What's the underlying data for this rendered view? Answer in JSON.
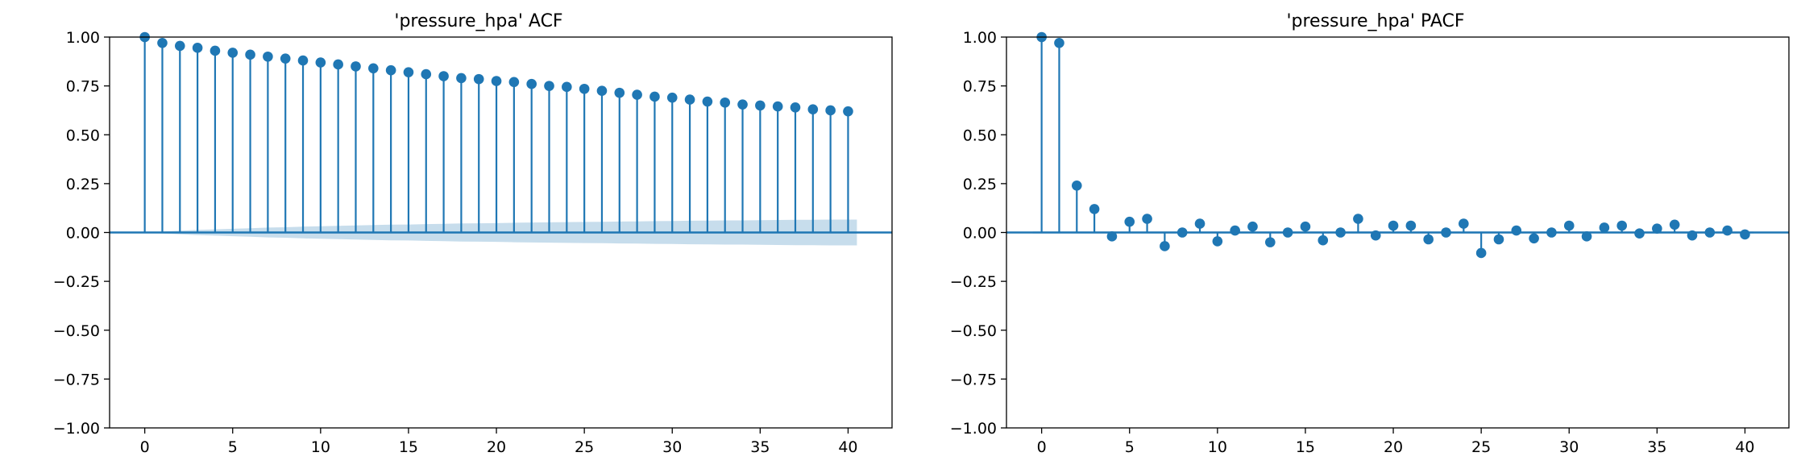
{
  "colors": {
    "stem": "#1f77b4",
    "band": "#1f77b4",
    "axis": "#000000",
    "background": "#ffffff"
  },
  "chart_data": [
    {
      "type": "stem",
      "title": "'pressure_hpa' ACF",
      "xlabel": "",
      "ylabel": "",
      "xlim": [
        -2,
        42.5
      ],
      "ylim": [
        -1.0,
        1.0
      ],
      "xticks": [
        0,
        5,
        10,
        15,
        20,
        25,
        30,
        35,
        40
      ],
      "xtick_labels": [
        "0",
        "5",
        "10",
        "15",
        "20",
        "25",
        "30",
        "35",
        "40"
      ],
      "yticks": [
        -1.0,
        -0.75,
        -0.5,
        -0.25,
        0.0,
        0.25,
        0.5,
        0.75,
        1.0
      ],
      "ytick_labels": [
        "−1.00",
        "−0.75",
        "−0.50",
        "−0.25",
        "0.00",
        "0.25",
        "0.50",
        "0.75",
        "1.00"
      ],
      "x": [
        0,
        1,
        2,
        3,
        4,
        5,
        6,
        7,
        8,
        9,
        10,
        11,
        12,
        13,
        14,
        15,
        16,
        17,
        18,
        19,
        20,
        21,
        22,
        23,
        24,
        25,
        26,
        27,
        28,
        29,
        30,
        31,
        32,
        33,
        34,
        35,
        36,
        37,
        38,
        39,
        40
      ],
      "values": [
        1.0,
        0.97,
        0.955,
        0.945,
        0.93,
        0.92,
        0.91,
        0.9,
        0.89,
        0.88,
        0.87,
        0.86,
        0.85,
        0.84,
        0.83,
        0.82,
        0.81,
        0.8,
        0.79,
        0.785,
        0.775,
        0.77,
        0.76,
        0.75,
        0.745,
        0.735,
        0.725,
        0.715,
        0.705,
        0.695,
        0.69,
        0.68,
        0.67,
        0.665,
        0.655,
        0.65,
        0.645,
        0.64,
        0.63,
        0.625,
        0.62
      ],
      "confidence_band": {
        "x": [
          0,
          1,
          2,
          3,
          4,
          5,
          6,
          7,
          8,
          9,
          10,
          11,
          12,
          13,
          14,
          15,
          16,
          17,
          18,
          19,
          20,
          21,
          22,
          23,
          24,
          25,
          26,
          27,
          28,
          29,
          30,
          31,
          32,
          33,
          34,
          35,
          36,
          37,
          38,
          39,
          40
        ],
        "half_width": [
          0.0,
          0.005,
          0.009,
          0.013,
          0.016,
          0.019,
          0.022,
          0.025,
          0.027,
          0.03,
          0.032,
          0.034,
          0.036,
          0.038,
          0.04,
          0.041,
          0.043,
          0.044,
          0.046,
          0.047,
          0.048,
          0.05,
          0.051,
          0.052,
          0.053,
          0.054,
          0.055,
          0.056,
          0.057,
          0.058,
          0.059,
          0.06,
          0.061,
          0.062,
          0.062,
          0.063,
          0.064,
          0.065,
          0.065,
          0.066,
          0.066
        ]
      },
      "grid": false,
      "legend": "none"
    },
    {
      "type": "stem",
      "title": "'pressure_hpa' PACF",
      "xlabel": "",
      "ylabel": "",
      "xlim": [
        -2,
        42.5
      ],
      "ylim": [
        -1.0,
        1.0
      ],
      "xticks": [
        0,
        5,
        10,
        15,
        20,
        25,
        30,
        35,
        40
      ],
      "xtick_labels": [
        "0",
        "5",
        "10",
        "15",
        "20",
        "25",
        "30",
        "35",
        "40"
      ],
      "yticks": [
        -1.0,
        -0.75,
        -0.5,
        -0.25,
        0.0,
        0.25,
        0.5,
        0.75,
        1.0
      ],
      "ytick_labels": [
        "−1.00",
        "−0.75",
        "−0.50",
        "−0.25",
        "0.00",
        "0.25",
        "0.50",
        "0.75",
        "1.00"
      ],
      "x": [
        0,
        1,
        2,
        3,
        4,
        5,
        6,
        7,
        8,
        9,
        10,
        11,
        12,
        13,
        14,
        15,
        16,
        17,
        18,
        19,
        20,
        21,
        22,
        23,
        24,
        25,
        26,
        27,
        28,
        29,
        30,
        31,
        32,
        33,
        34,
        35,
        36,
        37,
        38,
        39,
        40
      ],
      "values": [
        1.0,
        0.97,
        0.24,
        0.12,
        -0.02,
        0.055,
        0.07,
        -0.07,
        0.0,
        0.045,
        -0.045,
        0.01,
        0.03,
        -0.05,
        0.0,
        0.03,
        -0.04,
        0.0,
        0.07,
        -0.015,
        0.035,
        0.035,
        -0.035,
        0.0,
        0.045,
        -0.105,
        -0.035,
        0.01,
        -0.03,
        0.0,
        0.035,
        -0.02,
        0.025,
        0.035,
        -0.005,
        0.02,
        0.04,
        -0.015,
        0.0,
        0.01,
        -0.01
      ],
      "confidence_band": {
        "x": [
          0,
          1,
          2,
          3,
          4,
          5,
          6,
          7,
          8,
          9,
          10,
          11,
          12,
          13,
          14,
          15,
          16,
          17,
          18,
          19,
          20,
          21,
          22,
          23,
          24,
          25,
          26,
          27,
          28,
          29,
          30,
          31,
          32,
          33,
          34,
          35,
          36,
          37,
          38,
          39,
          40
        ],
        "half_width": [
          0.005,
          0.005,
          0.005,
          0.005,
          0.005,
          0.005,
          0.005,
          0.005,
          0.005,
          0.005,
          0.005,
          0.005,
          0.005,
          0.005,
          0.005,
          0.005,
          0.005,
          0.005,
          0.005,
          0.005,
          0.005,
          0.005,
          0.005,
          0.005,
          0.005,
          0.005,
          0.005,
          0.005,
          0.005,
          0.005,
          0.005,
          0.005,
          0.005,
          0.005,
          0.005,
          0.005,
          0.005,
          0.005,
          0.005,
          0.005,
          0.005
        ]
      },
      "grid": false,
      "legend": "none"
    }
  ]
}
